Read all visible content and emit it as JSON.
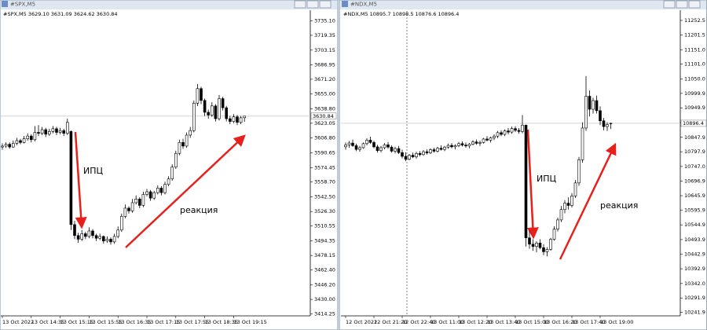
{
  "chart_data": [
    {
      "type": "candlestick",
      "window_title": "#SPX,M5",
      "header": "#SPX,M5  3629.10 3631.09 3624.62 3630.84",
      "annotations": [
        "ИПЦ",
        "реакция"
      ],
      "categories": [
        "13 Oct 2022",
        null,
        null,
        null,
        null,
        null,
        null,
        null,
        "13 Oct 14:35",
        null,
        null,
        null,
        null,
        null,
        null,
        null,
        "13 Oct 15:15",
        null,
        null,
        null,
        null,
        null,
        null,
        null,
        "13 Oct 15:55",
        null,
        null,
        null,
        null,
        null,
        null,
        null,
        "13 Oct 16:35",
        null,
        null,
        null,
        null,
        null,
        null,
        null,
        "13 Oct 17:15",
        null,
        null,
        null,
        null,
        null,
        null,
        null,
        "13 Oct 17:55",
        null,
        null,
        null,
        null,
        null,
        null,
        null,
        "13 Oct 18:35",
        null,
        null,
        null,
        null,
        null,
        null,
        null,
        "13 Oct 19:15",
        null,
        null,
        null
      ],
      "ohlc": [
        [
          3597,
          3601,
          3594,
          3598
        ],
        [
          3598,
          3602,
          3596,
          3600
        ],
        [
          3600,
          3602,
          3595,
          3597
        ],
        [
          3597,
          3604,
          3596,
          3601
        ],
        [
          3601,
          3607,
          3599,
          3604
        ],
        [
          3604,
          3606,
          3600,
          3602
        ],
        [
          3602,
          3609,
          3601,
          3606
        ],
        [
          3606,
          3612,
          3604,
          3609
        ],
        [
          3609,
          3611,
          3602,
          3605
        ],
        [
          3605,
          3620,
          3603,
          3613
        ],
        [
          3613,
          3621,
          3609,
          3612
        ],
        [
          3612,
          3619,
          3610,
          3616
        ],
        [
          3616,
          3618,
          3608,
          3611
        ],
        [
          3611,
          3617,
          3609,
          3614
        ],
        [
          3614,
          3620,
          3612,
          3617
        ],
        [
          3617,
          3619,
          3610,
          3613
        ],
        [
          3613,
          3618,
          3611,
          3615
        ],
        [
          3615,
          3617,
          3609,
          3612
        ],
        [
          3612,
          3628,
          3610,
          3624
        ],
        [
          3614,
          3615,
          3506,
          3512
        ],
        [
          3512,
          3516,
          3496,
          3500
        ],
        [
          3500,
          3503,
          3492,
          3496
        ],
        [
          3496,
          3506,
          3494,
          3502
        ],
        [
          3502,
          3504,
          3496,
          3499
        ],
        [
          3499,
          3509,
          3497,
          3505
        ],
        [
          3505,
          3507,
          3497,
          3500
        ],
        [
          3500,
          3502,
          3494,
          3497
        ],
        [
          3497,
          3502,
          3495,
          3499
        ],
        [
          3499,
          3500,
          3491,
          3494
        ],
        [
          3494,
          3499,
          3492,
          3496
        ],
        [
          3496,
          3498,
          3490,
          3493
        ],
        [
          3493,
          3502,
          3491,
          3499
        ],
        [
          3499,
          3510,
          3497,
          3506
        ],
        [
          3506,
          3524,
          3504,
          3521
        ],
        [
          3521,
          3534,
          3519,
          3530
        ],
        [
          3530,
          3532,
          3524,
          3527
        ],
        [
          3527,
          3540,
          3525,
          3536
        ],
        [
          3536,
          3544,
          3534,
          3540
        ],
        [
          3540,
          3542,
          3530,
          3533
        ],
        [
          3533,
          3548,
          3531,
          3545
        ],
        [
          3545,
          3551,
          3543,
          3548
        ],
        [
          3548,
          3550,
          3538,
          3541
        ],
        [
          3541,
          3549,
          3539,
          3547
        ],
        [
          3547,
          3555,
          3545,
          3552
        ],
        [
          3552,
          3554,
          3544,
          3547
        ],
        [
          3547,
          3559,
          3545,
          3556
        ],
        [
          3556,
          3565,
          3554,
          3562
        ],
        [
          3562,
          3578,
          3560,
          3575
        ],
        [
          3575,
          3593,
          3573,
          3590
        ],
        [
          3590,
          3605,
          3588,
          3602
        ],
        [
          3602,
          3606,
          3595,
          3598
        ],
        [
          3598,
          3613,
          3596,
          3610
        ],
        [
          3610,
          3619,
          3607,
          3615
        ],
        [
          3615,
          3648,
          3613,
          3645
        ],
        [
          3645,
          3666,
          3642,
          3661
        ],
        [
          3661,
          3663,
          3644,
          3648
        ],
        [
          3648,
          3650,
          3631,
          3635
        ],
        [
          3635,
          3638,
          3628,
          3632
        ],
        [
          3632,
          3646,
          3630,
          3642
        ],
        [
          3642,
          3644,
          3625,
          3628
        ],
        [
          3628,
          3654,
          3626,
          3650
        ],
        [
          3650,
          3652,
          3637,
          3640
        ],
        [
          3640,
          3642,
          3625,
          3628
        ],
        [
          3628,
          3631,
          3622,
          3625
        ],
        [
          3625,
          3633,
          3623,
          3630
        ],
        [
          3630,
          3632,
          3621,
          3624
        ],
        [
          3624,
          3631,
          3622,
          3629
        ],
        [
          3629.1,
          3631.09,
          3624.62,
          3630.84
        ]
      ],
      "ylim": [
        3412,
        3746
      ],
      "yticks": [
        {
          "value": 3735.1,
          "label": "3735.10"
        },
        3719.35,
        3703.15,
        3686.95,
        {
          "value": 3671.2,
          "label": "3671.20"
        },
        {
          "value": 3655,
          "label": "3655.00"
        },
        {
          "value": 3638.8,
          "label": "3638.80"
        },
        3623.05,
        {
          "value": 3606.8,
          "label": "3606.80"
        },
        3590.65,
        3574.45,
        {
          "value": 3558.7,
          "label": "3558.70"
        },
        {
          "value": 3542.5,
          "label": "3542.50"
        },
        {
          "value": 3526.3,
          "label": "3526.30"
        },
        3510.55,
        3494.35,
        3478.15,
        {
          "value": 3462.4,
          "label": "3462.40"
        },
        {
          "value": 3446.2,
          "label": "3446.20"
        },
        {
          "value": 3430,
          "label": "3430.00"
        },
        3414.25
      ],
      "last_price": 3630.84,
      "up_color": "#ffffff",
      "down_color": "#000000",
      "annotation_color": "#e8201c"
    },
    {
      "type": "candlestick",
      "window_title": "#NDX,M5",
      "header": "#NDX,M5  10895.7 10898.5 10876.6 10896.4",
      "annotations": [
        "ИПЦ",
        "реакция"
      ],
      "categories": [
        "12 Oct 2022",
        null,
        null,
        null,
        null,
        null,
        null,
        null,
        "12 Oct 21:20",
        null,
        null,
        null,
        null,
        null,
        null,
        null,
        "12 Oct 22:40",
        null,
        null,
        null,
        null,
        null,
        null,
        null,
        "13 Oct 11:00",
        null,
        null,
        null,
        null,
        null,
        null,
        null,
        "13 Oct 12:20",
        null,
        null,
        null,
        null,
        null,
        null,
        null,
        "13 Oct 13:40",
        null,
        null,
        null,
        null,
        null,
        null,
        null,
        "13 Oct 15:00",
        null,
        null,
        null,
        null,
        null,
        null,
        null,
        "13 Oct 16:20",
        null,
        null,
        null,
        null,
        null,
        null,
        null,
        "13 Oct 17:40",
        null,
        null,
        null,
        null,
        null,
        null,
        null,
        "13 Oct 19:00",
        null,
        null,
        null
      ],
      "ohlc": [
        [
          10815,
          10830,
          10805,
          10822
        ],
        [
          10822,
          10835,
          10812,
          10828
        ],
        [
          10828,
          10840,
          10815,
          10819
        ],
        [
          10819,
          10826,
          10800,
          10806
        ],
        [
          10806,
          10818,
          10798,
          10812
        ],
        [
          10812,
          10830,
          10808,
          10826
        ],
        [
          10826,
          10845,
          10820,
          10838
        ],
        [
          10838,
          10850,
          10825,
          10830
        ],
        [
          10830,
          10836,
          10810,
          10815
        ],
        [
          10815,
          10822,
          10795,
          10802
        ],
        [
          10802,
          10818,
          10796,
          10812
        ],
        [
          10812,
          10828,
          10806,
          10822
        ],
        [
          10822,
          10832,
          10808,
          10814
        ],
        [
          10814,
          10820,
          10795,
          10800
        ],
        [
          10800,
          10815,
          10792,
          10809
        ],
        [
          10809,
          10818,
          10790,
          10795
        ],
        [
          10795,
          10805,
          10775,
          10782
        ],
        [
          10782,
          10796,
          10765,
          10772
        ],
        [
          10772,
          10790,
          10768,
          10786
        ],
        [
          10786,
          10795,
          10776,
          10780
        ],
        [
          10780,
          10798,
          10774,
          10792
        ],
        [
          10792,
          10800,
          10782,
          10788
        ],
        [
          10788,
          10804,
          10784,
          10798
        ],
        [
          10798,
          10806,
          10788,
          10794
        ],
        [
          10794,
          10810,
          10790,
          10805
        ],
        [
          10805,
          10812,
          10795,
          10800
        ],
        [
          10800,
          10815,
          10796,
          10810
        ],
        [
          10810,
          10820,
          10802,
          10806
        ],
        [
          10806,
          10818,
          10800,
          10814
        ],
        [
          10814,
          10826,
          10808,
          10820
        ],
        [
          10820,
          10828,
          10810,
          10815
        ],
        [
          10815,
          10824,
          10806,
          10819
        ],
        [
          10819,
          10832,
          10814,
          10826
        ],
        [
          10826,
          10834,
          10816,
          10821
        ],
        [
          10821,
          10830,
          10812,
          10818
        ],
        [
          10818,
          10828,
          10810,
          10824
        ],
        [
          10824,
          10838,
          10820,
          10832
        ],
        [
          10832,
          10840,
          10822,
          10827
        ],
        [
          10827,
          10836,
          10818,
          10830
        ],
        [
          10830,
          10846,
          10826,
          10842
        ],
        [
          10842,
          10852,
          10834,
          10838
        ],
        [
          10838,
          10850,
          10830,
          10846
        ],
        [
          10846,
          10858,
          10838,
          10852
        ],
        [
          10852,
          10870,
          10845,
          10864
        ],
        [
          10864,
          10872,
          10852,
          10858
        ],
        [
          10858,
          10875,
          10852,
          10870
        ],
        [
          10870,
          10880,
          10858,
          10866
        ],
        [
          10866,
          10885,
          10860,
          10878
        ],
        [
          10878,
          10886,
          10866,
          10872
        ],
        [
          10872,
          10880,
          10860,
          10868
        ],
        [
          10868,
          10925,
          10862,
          10890
        ],
        [
          10890,
          10892,
          10470,
          10500
        ],
        [
          10500,
          10525,
          10462,
          10478
        ],
        [
          10478,
          10495,
          10455,
          10470
        ],
        [
          10470,
          10488,
          10450,
          10482
        ],
        [
          10482,
          10495,
          10460,
          10466
        ],
        [
          10466,
          10478,
          10440,
          10452
        ],
        [
          10452,
          10468,
          10436,
          10460
        ],
        [
          10460,
          10500,
          10455,
          10495
        ],
        [
          10495,
          10540,
          10490,
          10530
        ],
        [
          10530,
          10570,
          10522,
          10562
        ],
        [
          10562,
          10610,
          10555,
          10598
        ],
        [
          10598,
          10630,
          10585,
          10620
        ],
        [
          10620,
          10640,
          10598,
          10612
        ],
        [
          10612,
          10655,
          10605,
          10645
        ],
        [
          10645,
          10700,
          10638,
          10690
        ],
        [
          10690,
          10780,
          10680,
          10770
        ],
        [
          10770,
          10900,
          10760,
          10880
        ],
        [
          10880,
          11060,
          10870,
          10990
        ],
        [
          10990,
          11010,
          10920,
          10945
        ],
        [
          10945,
          10985,
          10930,
          10975
        ],
        [
          10975,
          10992,
          10930,
          10940
        ],
        [
          10940,
          10955,
          10890,
          10905
        ],
        [
          10905,
          10915,
          10872,
          10885
        ],
        [
          10885,
          10900,
          10870,
          10892
        ],
        [
          10895.7,
          10898.5,
          10876.6,
          10896.4
        ]
      ],
      "ylim": [
        10230,
        11285
      ],
      "yticks": [
        11252.5,
        11201.5,
        {
          "value": 11151,
          "label": "11151.0"
        },
        {
          "value": 11101,
          "label": "11101.0"
        },
        {
          "value": 11050,
          "label": "11050.0"
        },
        10999.9,
        10949.9,
        10898.9,
        10847.9,
        10797.9,
        {
          "value": 10747,
          "label": "10747.0"
        },
        10696.9,
        10645.9,
        10595.9,
        10544.9,
        10493.9,
        10442.9,
        10392.9,
        {
          "value": 10342,
          "label": "10342.0"
        },
        10291.9,
        10241.9
      ],
      "last_price": 10896.4,
      "up_color": "#ffffff",
      "down_color": "#000000",
      "annotation_color": "#e8201c"
    }
  ]
}
